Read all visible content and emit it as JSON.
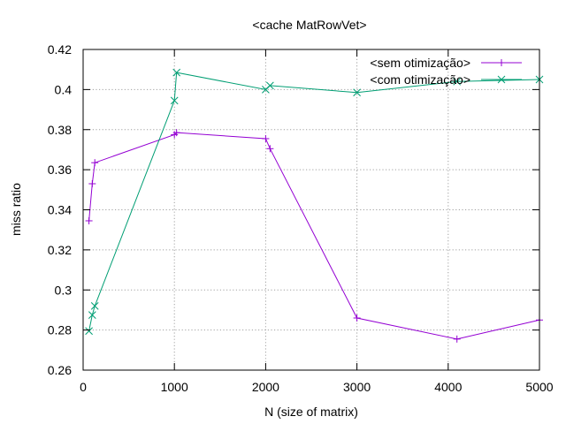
{
  "chart_data": {
    "type": "line",
    "title": "<cache MatRowVet>",
    "xlabel": "N (size of matrix)",
    "ylabel": "miss ratio",
    "xlim": [
      0,
      5000
    ],
    "ylim": [
      0.26,
      0.42
    ],
    "xticks": [
      0,
      1000,
      2000,
      3000,
      4000,
      5000
    ],
    "yticks": [
      0.26,
      0.28,
      0.3,
      0.32,
      0.34,
      0.36,
      0.38,
      0.4,
      0.42
    ],
    "xtick_labels": [
      "0",
      "1000",
      "2000",
      "3000",
      "4000",
      "5000"
    ],
    "ytick_labels": [
      "0.26",
      "0.28",
      "0.3",
      "0.32",
      "0.34",
      "0.36",
      "0.38",
      "0.4",
      "0.42"
    ],
    "grid": true,
    "legend_position": "top-right",
    "series": [
      {
        "name": "<sem otimização>",
        "color": "#9400d3",
        "marker": "plus",
        "x": [
          64,
          100,
          128,
          1000,
          1024,
          2000,
          2048,
          3000,
          4096,
          5000
        ],
        "y": [
          0.3345,
          0.353,
          0.3635,
          0.3775,
          0.3785,
          0.3755,
          0.3705,
          0.286,
          0.2755,
          0.285
        ]
      },
      {
        "name": "<com otimização>",
        "color": "#009e73",
        "marker": "cross",
        "x": [
          64,
          100,
          128,
          1000,
          1024,
          2000,
          2048,
          3000,
          4096,
          5000
        ],
        "y": [
          0.2795,
          0.2875,
          0.292,
          0.3945,
          0.4085,
          0.4,
          0.402,
          0.3985,
          0.404,
          0.405
        ]
      }
    ]
  }
}
